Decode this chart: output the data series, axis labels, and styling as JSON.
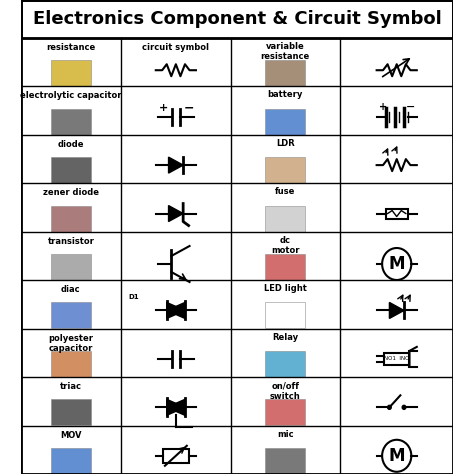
{
  "title": "Electronics Component & Circuit Symbol",
  "title_fontsize": 13,
  "title_fontweight": "bold",
  "background_color": "#ffffff",
  "border_color": "#000000",
  "grid_color": "#000000",
  "text_color": "#000000",
  "rows": [
    {
      "col1_label": "resistance",
      "col2_label": "circuit symbol",
      "col3_label": "variable\nresistance"
    },
    {
      "col1_label": "electrolytic capacitor",
      "col2_label": "",
      "col3_label": "battery"
    },
    {
      "col1_label": "diode",
      "col2_label": "",
      "col3_label": "LDR"
    },
    {
      "col1_label": "zener diode",
      "col2_label": "",
      "col3_label": "fuse"
    },
    {
      "col1_label": "transistor",
      "col2_label": "",
      "col3_label": "dc\nmotor"
    },
    {
      "col1_label": "diac",
      "col2_label": "D1",
      "col3_label": "LED light"
    },
    {
      "col1_label": "polyester\ncapacitor",
      "col2_label": "",
      "col3_label": "Relay"
    },
    {
      "col1_label": "triac",
      "col2_label": "",
      "col3_label": "on/off\nswitch"
    },
    {
      "col1_label": "MOV",
      "col2_label": "",
      "col3_label": "mic"
    }
  ],
  "col4_labels": [
    "",
    "",
    "",
    "",
    "",
    "",
    "",
    "",
    ""
  ]
}
